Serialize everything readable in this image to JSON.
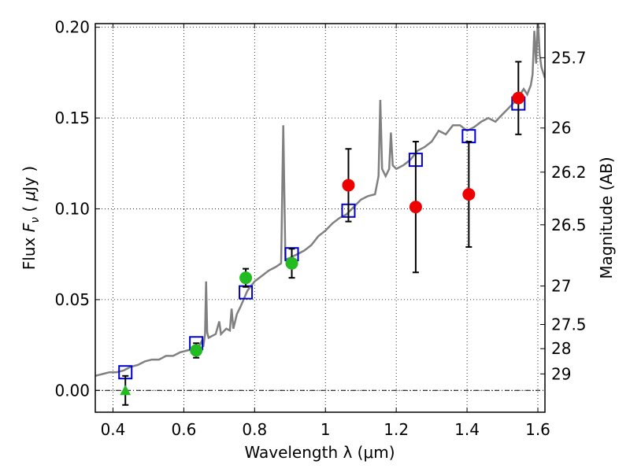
{
  "chart_data": {
    "type": "scatter",
    "xlabel": "Wavelength  λ (μm)",
    "ylabel": "Flux  F_ν  ( μJy )",
    "ylabel_parts": {
      "pre": "Flux  ",
      "var": "F",
      "sub": "ν",
      "post": "  ( ",
      "mu": "μ",
      "unit": "Jy )"
    },
    "y2label": "Magnitude (AB)",
    "xlim": [
      0.35,
      1.62
    ],
    "ylim": [
      -0.012,
      0.202
    ],
    "grid": true,
    "x_ticks": [
      {
        "v": 0.4,
        "label": "0.4"
      },
      {
        "v": 0.6,
        "label": "0.6"
      },
      {
        "v": 0.8,
        "label": "0.8"
      },
      {
        "v": 1.0,
        "label": "1"
      },
      {
        "v": 1.2,
        "label": "1.2"
      },
      {
        "v": 1.4,
        "label": "1.4"
      },
      {
        "v": 1.6,
        "label": "1.6"
      }
    ],
    "y_ticks": [
      {
        "v": 0.0,
        "label": "0.00"
      },
      {
        "v": 0.05,
        "label": "0.05"
      },
      {
        "v": 0.1,
        "label": "0.10"
      },
      {
        "v": 0.15,
        "label": "0.15"
      },
      {
        "v": 0.2,
        "label": "0.20"
      }
    ],
    "mag_ticks": [
      {
        "flux": 0.1832,
        "label": "25.7"
      },
      {
        "flux": 0.1445,
        "label": "26"
      },
      {
        "flux": 0.1202,
        "label": "26.2"
      },
      {
        "flux": 0.0912,
        "label": "26.5"
      },
      {
        "flux": 0.0575,
        "label": "27"
      },
      {
        "flux": 0.0363,
        "label": "27.5"
      },
      {
        "flux": 0.023,
        "label": "28"
      },
      {
        "flux": 0.0091,
        "label": "29"
      }
    ],
    "zero_line": 0.0,
    "colors": {
      "spectrum": "#808080",
      "model_box": "#0000cc",
      "green": "#22bb22",
      "red": "#ee0000",
      "error": "#000000"
    },
    "spectrum": [
      [
        0.35,
        0.008
      ],
      [
        0.37,
        0.009
      ],
      [
        0.39,
        0.01
      ],
      [
        0.41,
        0.01
      ],
      [
        0.43,
        0.011
      ],
      [
        0.45,
        0.013
      ],
      [
        0.47,
        0.014
      ],
      [
        0.49,
        0.016
      ],
      [
        0.51,
        0.017
      ],
      [
        0.53,
        0.017
      ],
      [
        0.55,
        0.019
      ],
      [
        0.57,
        0.019
      ],
      [
        0.59,
        0.021
      ],
      [
        0.61,
        0.022
      ],
      [
        0.63,
        0.023
      ],
      [
        0.645,
        0.025
      ],
      [
        0.65,
        0.027
      ],
      [
        0.655,
        0.024
      ],
      [
        0.66,
        0.031
      ],
      [
        0.663,
        0.06
      ],
      [
        0.666,
        0.032
      ],
      [
        0.67,
        0.029
      ],
      [
        0.69,
        0.031
      ],
      [
        0.7,
        0.038
      ],
      [
        0.705,
        0.031
      ],
      [
        0.72,
        0.034
      ],
      [
        0.73,
        0.033
      ],
      [
        0.735,
        0.045
      ],
      [
        0.74,
        0.034
      ],
      [
        0.75,
        0.042
      ],
      [
        0.76,
        0.046
      ],
      [
        0.78,
        0.055
      ],
      [
        0.8,
        0.06
      ],
      [
        0.82,
        0.063
      ],
      [
        0.84,
        0.066
      ],
      [
        0.86,
        0.068
      ],
      [
        0.875,
        0.07
      ],
      [
        0.881,
        0.146
      ],
      [
        0.887,
        0.072
      ],
      [
        0.9,
        0.073
      ],
      [
        0.92,
        0.075
      ],
      [
        0.94,
        0.077
      ],
      [
        0.96,
        0.08
      ],
      [
        0.98,
        0.085
      ],
      [
        1.0,
        0.088
      ],
      [
        1.02,
        0.092
      ],
      [
        1.04,
        0.095
      ],
      [
        1.06,
        0.097
      ],
      [
        1.08,
        0.101
      ],
      [
        1.1,
        0.105
      ],
      [
        1.12,
        0.107
      ],
      [
        1.14,
        0.108
      ],
      [
        1.15,
        0.118
      ],
      [
        1.155,
        0.16
      ],
      [
        1.16,
        0.122
      ],
      [
        1.17,
        0.118
      ],
      [
        1.18,
        0.122
      ],
      [
        1.185,
        0.142
      ],
      [
        1.19,
        0.124
      ],
      [
        1.2,
        0.122
      ],
      [
        1.22,
        0.124
      ],
      [
        1.24,
        0.127
      ],
      [
        1.26,
        0.132
      ],
      [
        1.28,
        0.134
      ],
      [
        1.3,
        0.137
      ],
      [
        1.32,
        0.143
      ],
      [
        1.34,
        0.141
      ],
      [
        1.36,
        0.146
      ],
      [
        1.38,
        0.146
      ],
      [
        1.4,
        0.143
      ],
      [
        1.42,
        0.145
      ],
      [
        1.44,
        0.148
      ],
      [
        1.46,
        0.15
      ],
      [
        1.48,
        0.148
      ],
      [
        1.5,
        0.152
      ],
      [
        1.52,
        0.156
      ],
      [
        1.54,
        0.16
      ],
      [
        1.56,
        0.166
      ],
      [
        1.57,
        0.163
      ],
      [
        1.58,
        0.168
      ],
      [
        1.585,
        0.174
      ],
      [
        1.59,
        0.198
      ],
      [
        1.595,
        0.18
      ],
      [
        1.6,
        0.205
      ],
      [
        1.605,
        0.185
      ],
      [
        1.61,
        0.178
      ],
      [
        1.62,
        0.172
      ]
    ],
    "model_boxes": [
      {
        "x": 0.435,
        "y": 0.01
      },
      {
        "x": 0.635,
        "y": 0.026
      },
      {
        "x": 0.775,
        "y": 0.054
      },
      {
        "x": 0.905,
        "y": 0.075
      },
      {
        "x": 1.065,
        "y": 0.099
      },
      {
        "x": 1.255,
        "y": 0.127
      },
      {
        "x": 1.405,
        "y": 0.14
      },
      {
        "x": 1.545,
        "y": 0.158
      }
    ],
    "series_green": [
      {
        "x": 0.435,
        "y": 0.0,
        "marker": "triangle",
        "err": 0.008
      },
      {
        "x": 0.635,
        "y": 0.022,
        "marker": "circle",
        "err": 0.004
      },
      {
        "x": 0.775,
        "y": 0.062,
        "marker": "circle",
        "err": 0.005
      },
      {
        "x": 0.905,
        "y": 0.07,
        "marker": "circle",
        "err": 0.008
      }
    ],
    "series_red": [
      {
        "x": 1.065,
        "y": 0.113,
        "err": 0.02
      },
      {
        "x": 1.255,
        "y": 0.101,
        "err": 0.036
      },
      {
        "x": 1.405,
        "y": 0.108,
        "err": 0.029
      },
      {
        "x": 1.545,
        "y": 0.161,
        "err": 0.02
      }
    ]
  }
}
